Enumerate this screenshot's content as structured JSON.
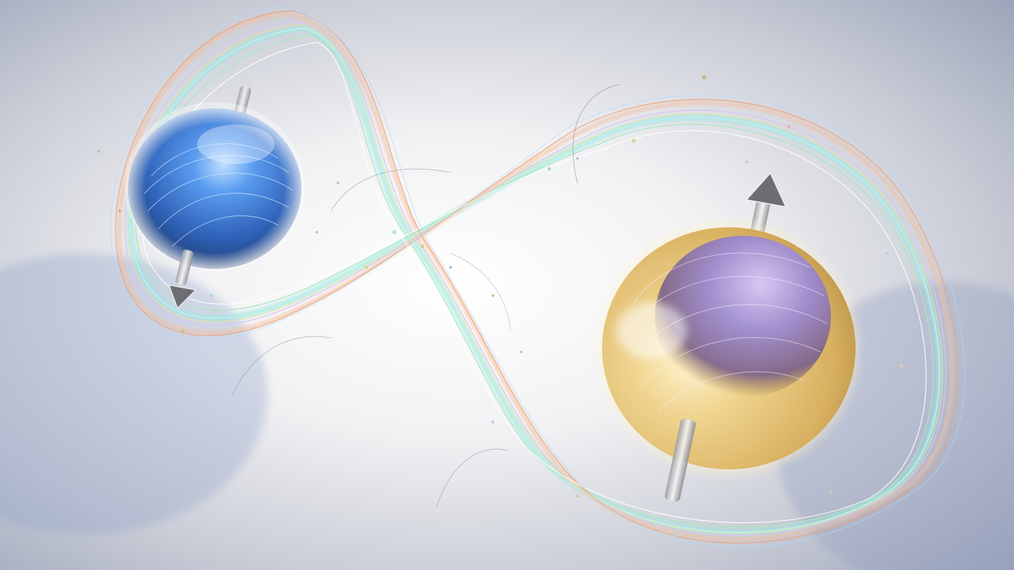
{
  "scene": {
    "subject": "quantum-entanglement-illustration",
    "particles": [
      {
        "name": "blue-particle",
        "spin": "down",
        "color": "#3f7fd8"
      },
      {
        "name": "gold-particle",
        "spin": "up",
        "color": "#e2c070"
      }
    ],
    "colors": {
      "background_center": "#ffffff",
      "background_edge": "#9aa3b8",
      "blue_sphere": "#3f7fd8",
      "gold_sphere": "#e6c676",
      "violet_core": "#9a8fd8",
      "arrow": "#d8dadc"
    }
  }
}
